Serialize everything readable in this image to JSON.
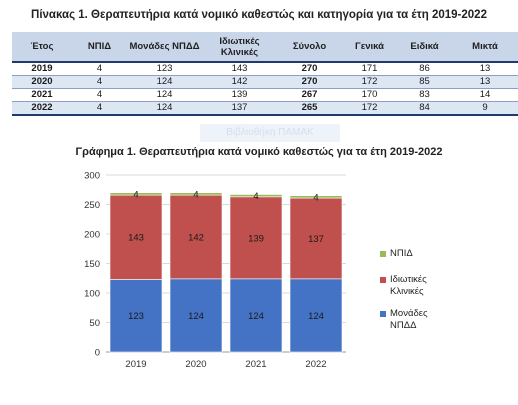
{
  "table": {
    "title": "Πίνακας 1. Θεραπευτήρια κατά νομικό καθεστώς και κατηγορία για τα έτη 2019-2022",
    "headers": [
      "Έτος",
      "ΝΠΙΔ",
      "Μονάδες ΝΠΔΔ",
      "Ιδιωτικές Κλινικές",
      "Σύνολο",
      "Γενικά",
      "Ειδικά",
      "Μικτά"
    ],
    "rows": [
      [
        "2019",
        "4",
        "123",
        "143",
        "270",
        "171",
        "86",
        "13"
      ],
      [
        "2020",
        "4",
        "124",
        "142",
        "270",
        "172",
        "85",
        "13"
      ],
      [
        "2021",
        "4",
        "124",
        "139",
        "267",
        "170",
        "83",
        "14"
      ],
      [
        "2022",
        "4",
        "124",
        "137",
        "265",
        "172",
        "84",
        "9"
      ]
    ]
  },
  "watermark": "Βιβλιοθήκη ΠΑΜΑΚ",
  "chart_data": {
    "type": "bar",
    "stacked": true,
    "title": "Γράφημα 1. Θεραπευτήρια κατά νομικό καθεστώς για τα έτη 2019-2022",
    "categories": [
      "2019",
      "2020",
      "2021",
      "2022"
    ],
    "series": [
      {
        "name": "Μονάδες ΝΠΔΔ",
        "values": [
          123,
          124,
          124,
          124
        ],
        "color": "#4472c4"
      },
      {
        "name": "Ιδιωτικές Κλινικές",
        "values": [
          143,
          142,
          139,
          137
        ],
        "color": "#c0504d"
      },
      {
        "name": "ΝΠΙΔ",
        "values": [
          4,
          4,
          4,
          4
        ],
        "color": "#9bbb59"
      }
    ],
    "ylim": [
      0,
      300
    ],
    "yticks": [
      0,
      50,
      100,
      150,
      200,
      250,
      300
    ],
    "xlabel": "",
    "ylabel": "",
    "grid": true,
    "legend": "right",
    "legend_order": [
      "ΝΠΙΔ",
      "Ιδιωτικές Κλινικές",
      "Μονάδες ΝΠΔΔ"
    ]
  }
}
